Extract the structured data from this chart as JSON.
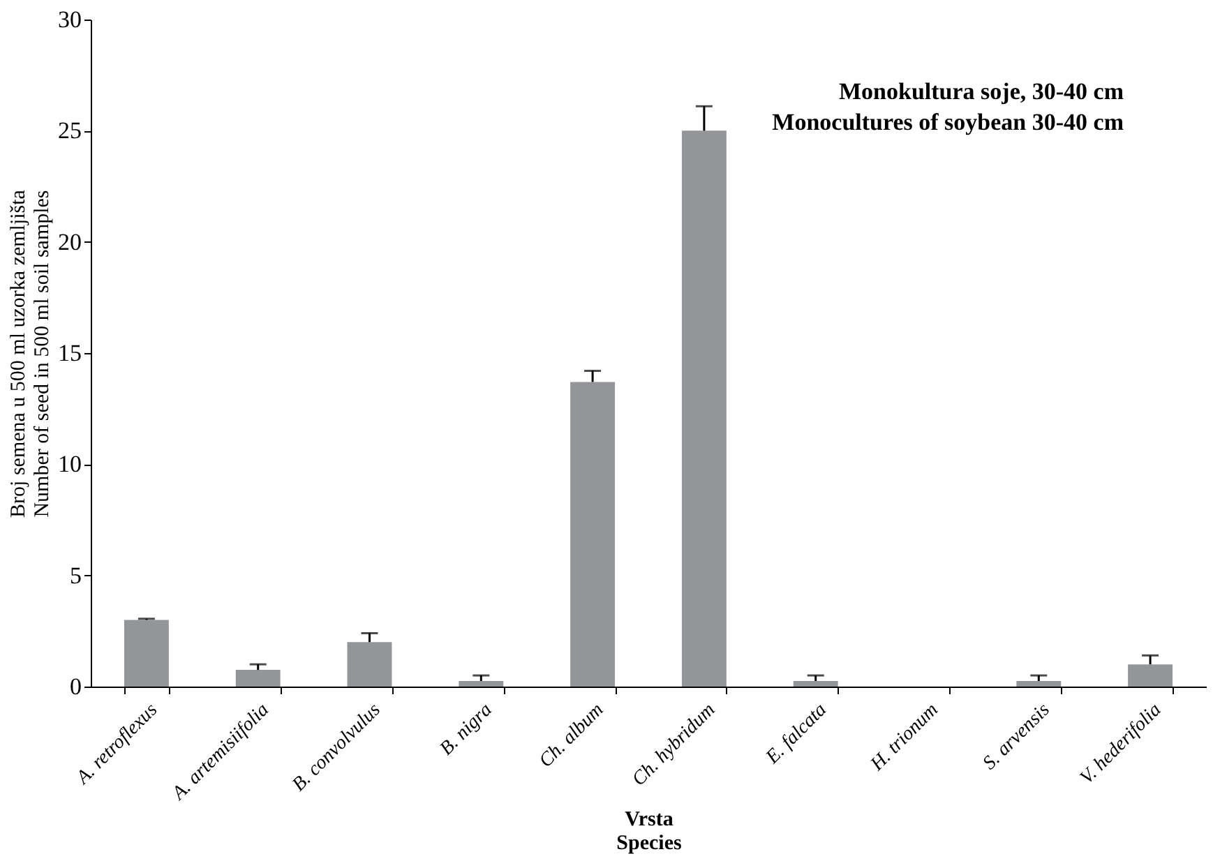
{
  "chart_data": {
    "type": "bar",
    "categories": [
      "A. retroflexus",
      "A. artemisiifolia",
      "B. convolvulus",
      "B. nigra",
      "Ch. album",
      "Ch. hybridum",
      "E. falcata",
      "H. trionum",
      "S. arvensis",
      "V. hederifolia"
    ],
    "values": [
      3.0,
      0.75,
      2.0,
      0.25,
      13.7,
      25.0,
      0.25,
      0,
      0.25,
      1.0
    ],
    "errors": [
      [
        3.0,
        3.05
      ],
      [
        0.75,
        1.0
      ],
      [
        2.0,
        2.4
      ],
      [
        0.25,
        0.5
      ],
      [
        13.7,
        14.2
      ],
      [
        25.0,
        26.1
      ],
      [
        0.25,
        0.5
      ],
      null,
      [
        0.25,
        0.5
      ],
      [
        1.0,
        1.4
      ]
    ],
    "color": "#939598",
    "ylim": [
      0,
      30
    ],
    "yticks": [
      0,
      5,
      10,
      15,
      20,
      25,
      30
    ],
    "xlabel": "Vrsta\nSpecies",
    "ylabel": "Broj semena u 500 ml uzorka  zemljišta\nNumber of seed in 500 ml soil samples",
    "annotations": [
      "Monokultura soje, 30-40 cm",
      "Monocultures of soybean 30-40 cm"
    ],
    "grid": false
  }
}
